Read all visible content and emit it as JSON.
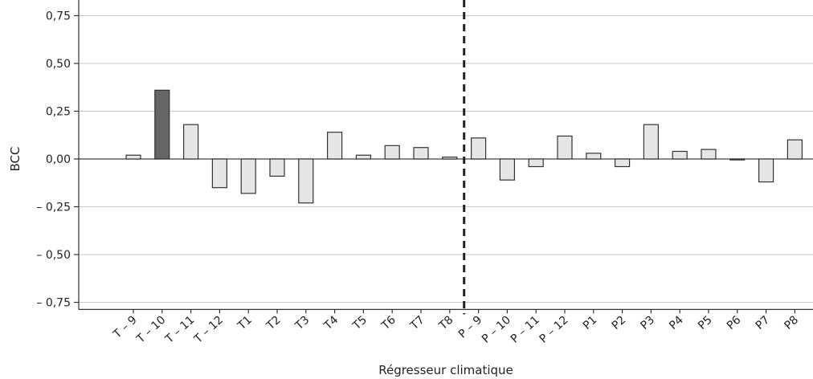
{
  "chart_data": {
    "type": "bar",
    "xlabel": "Régresseur climatique",
    "ylabel": "BCC",
    "ylim": [
      -0.8,
      0.8
    ],
    "yticks": [
      "0,75",
      "0,50",
      "0,25",
      "0,00",
      "– 0,25",
      "– 0,50",
      "– 0,75"
    ],
    "ytick_values": [
      0.75,
      0.5,
      0.25,
      0,
      -0.25,
      -0.5,
      -0.75
    ],
    "grid": true,
    "categories": [
      "T – 9",
      "T – 10",
      "T – 11",
      "T – 12",
      "T1",
      "T2",
      "T3",
      "T4",
      "T5",
      "T6",
      "T7",
      "T8",
      "P – 9",
      "P – 10",
      "P – 11",
      "P – 12",
      "P1",
      "P2",
      "P3",
      "P4",
      "P5",
      "P6",
      "P7",
      "P8"
    ],
    "values": [
      0.02,
      0.36,
      0.18,
      -0.15,
      -0.18,
      -0.09,
      -0.23,
      0.14,
      0.02,
      0.07,
      0.06,
      0.01,
      0.11,
      -0.11,
      -0.04,
      0.12,
      0.03,
      -0.04,
      0.18,
      0.04,
      0.05,
      -0.005,
      -0.12,
      0.1
    ],
    "highlight_index": 1,
    "divider_between": [
      "T8",
      "P – 9"
    ],
    "colors": {
      "bar": "#e6e6e6",
      "bar_highlight": "#666666",
      "bar_stroke": "#333333"
    }
  }
}
